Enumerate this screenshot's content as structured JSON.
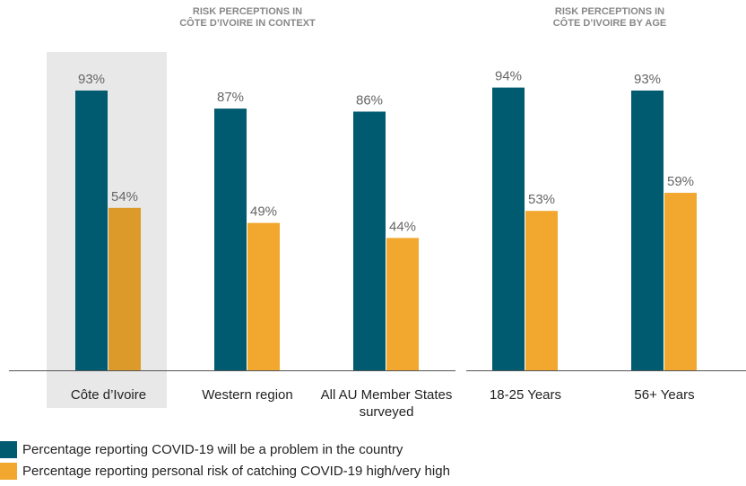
{
  "chart_data": [
    {
      "type": "bar",
      "title": [
        "RISK PERCEPTIONS IN",
        "CÔTE D’IVOIRE IN CONTEXT"
      ],
      "categories": [
        "Côte d’Ivoire",
        "Western region",
        "All AU Member States surveyed"
      ],
      "highlight_index": 0,
      "highlight_colors": [
        "#e8e8e8",
        "#dc9a2b"
      ],
      "series": [
        {
          "name": "Percentage reporting COVID-19 will be a problem in the country",
          "color": "#005a70",
          "values": [
            93,
            87,
            86
          ],
          "value_labels": [
            "93%",
            "87%",
            "86%"
          ]
        },
        {
          "name": "Percentage reporting personal risk of catching COVID-19 high/very high",
          "color": "#f2a72e",
          "values": [
            54,
            49,
            44
          ],
          "value_labels": [
            "54%",
            "49%",
            "44%"
          ]
        }
      ]
    },
    {
      "type": "bar",
      "title": [
        "RISK PERCEPTIONS IN",
        "CÔTE D’IVOIRE BY AGE"
      ],
      "categories": [
        "18-25 Years",
        "56+ Years"
      ],
      "series": [
        {
          "color": "#005a70",
          "values": [
            94,
            93
          ],
          "value_labels": [
            "94%",
            "93%"
          ]
        },
        {
          "color": "#f2a72e",
          "values": [
            53,
            59
          ],
          "value_labels": [
            "53%",
            "59%"
          ]
        }
      ]
    }
  ]
}
